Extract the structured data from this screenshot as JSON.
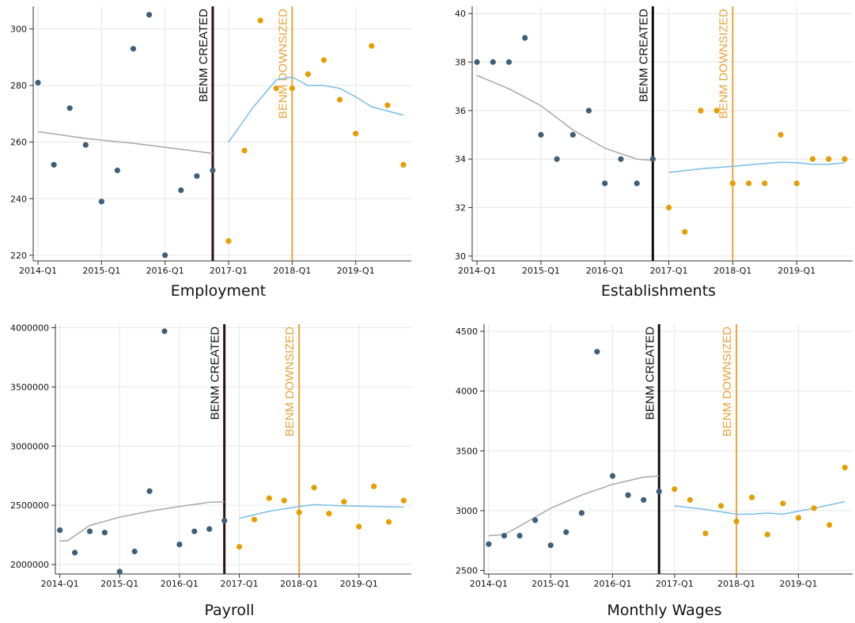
{
  "chart_data": [
    {
      "type": "scatter",
      "title": "Employment",
      "xlabel": "Employment",
      "x_ticks": [
        "2014-Q1",
        "2015-Q1",
        "2016-Q1",
        "2017-Q1",
        "2018-Q1",
        "2019-Q1"
      ],
      "ylim": [
        218,
        308
      ],
      "y_ticks": [
        "220",
        "240",
        "260",
        "280",
        "300"
      ],
      "grid": true,
      "annotations": [
        {
          "label": "BENM CREATED",
          "quarter": 11.0,
          "color": "#2b1014"
        },
        {
          "label": "BENM DOWNSIZED",
          "quarter": 16.0,
          "color": "#e8a43a"
        }
      ],
      "series": [
        {
          "color": "#3e5f7a",
          "points": [
            [
              0,
              281
            ],
            [
              1,
              252
            ],
            [
              2,
              272
            ],
            [
              3,
              259
            ],
            [
              4,
              239
            ],
            [
              5,
              250
            ],
            [
              6,
              293
            ],
            [
              7,
              305
            ],
            [
              8,
              220
            ],
            [
              9,
              243
            ],
            [
              10,
              248
            ],
            [
              11,
              250
            ]
          ]
        },
        {
          "color": "#e39f00",
          "points": [
            [
              12,
              225
            ],
            [
              13,
              257
            ],
            [
              14,
              303
            ],
            [
              15,
              279
            ],
            [
              16,
              279
            ],
            [
              17,
              284
            ],
            [
              18,
              289
            ],
            [
              19,
              275
            ],
            [
              20,
              263
            ],
            [
              21,
              294
            ],
            [
              22,
              273
            ],
            [
              23,
              252
            ]
          ]
        }
      ],
      "trend_lines": [
        {
          "color": "#a8a8a8",
          "points": [
            [
              0,
              263.7
            ],
            [
              3,
              261.3
            ],
            [
              6,
              259.6
            ],
            [
              8,
              258.2
            ],
            [
              11,
              256
            ]
          ]
        },
        {
          "color": "#79bde6",
          "points": [
            [
              12,
              260
            ],
            [
              13.5,
              272
            ],
            [
              15,
              282
            ],
            [
              16,
              283
            ],
            [
              17,
              280
            ],
            [
              18,
              280
            ],
            [
              19,
              279
            ],
            [
              20,
              276
            ],
            [
              21,
              272.5
            ],
            [
              22,
              271
            ],
            [
              23,
              269.5
            ]
          ]
        }
      ]
    },
    {
      "type": "scatter",
      "title": "Establishments",
      "xlabel": "Establishments",
      "x_ticks": [
        "2014-Q1",
        "2015-Q1",
        "2016-Q1",
        "2017-Q1",
        "2018-Q1",
        "2019-Q1"
      ],
      "ylim": [
        29.8,
        40.3
      ],
      "y_ticks": [
        "30",
        "32",
        "34",
        "36",
        "38",
        "40"
      ],
      "grid": true,
      "annotations": [
        {
          "label": "BENM CREATED",
          "quarter": 11.0,
          "color": "#111111"
        },
        {
          "label": "BENM DOWNSIZED",
          "quarter": 16.0,
          "color": "#e8a43a"
        }
      ],
      "series": [
        {
          "color": "#3e5f7a",
          "points": [
            [
              0,
              38
            ],
            [
              1,
              38
            ],
            [
              2,
              38
            ],
            [
              3,
              39
            ],
            [
              4,
              35
            ],
            [
              5,
              34
            ],
            [
              6,
              35
            ],
            [
              7,
              36
            ],
            [
              8,
              33
            ],
            [
              9,
              34
            ],
            [
              10,
              33
            ],
            [
              11,
              34
            ]
          ]
        },
        {
          "color": "#e39f00",
          "points": [
            [
              12,
              32
            ],
            [
              13,
              31
            ],
            [
              14,
              36
            ],
            [
              15,
              36
            ],
            [
              16,
              33
            ],
            [
              17,
              33
            ],
            [
              18,
              33
            ],
            [
              19,
              35
            ],
            [
              20,
              33
            ],
            [
              21,
              34
            ],
            [
              22,
              34
            ],
            [
              23,
              34
            ]
          ]
        }
      ],
      "trend_lines": [
        {
          "color": "#a8a8a8",
          "points": [
            [
              0,
              37.45
            ],
            [
              2,
              36.9
            ],
            [
              4,
              36.2
            ],
            [
              6,
              35.2
            ],
            [
              8,
              34.45
            ],
            [
              10,
              34.0
            ],
            [
              11,
              33.95
            ]
          ]
        },
        {
          "color": "#79bde6",
          "points": [
            [
              12,
              33.45
            ],
            [
              14,
              33.6
            ],
            [
              16,
              33.7
            ],
            [
              18,
              33.82
            ],
            [
              19,
              33.87
            ],
            [
              20,
              33.85
            ],
            [
              21,
              33.78
            ],
            [
              22,
              33.78
            ],
            [
              23,
              33.85
            ]
          ]
        }
      ]
    },
    {
      "type": "scatter",
      "title": "Payroll",
      "xlabel": "Payroll",
      "x_ticks": [
        "2014-Q1",
        "2015-Q1",
        "2016-Q1",
        "2017-Q1",
        "2018-Q1",
        "2019-Q1"
      ],
      "ylim": [
        1920000,
        4030000
      ],
      "y_ticks": [
        "2000000",
        "2500000",
        "3000000",
        "3500000",
        "4000000"
      ],
      "grid": true,
      "annotations": [
        {
          "label": "BENM CREATED",
          "quarter": 11.0,
          "color": "#2b1014"
        },
        {
          "label": "BENM DOWNSIZED",
          "quarter": 16.0,
          "color": "#e8a43a"
        }
      ],
      "series": [
        {
          "color": "#3e5f7a",
          "points": [
            [
              0,
              2290000
            ],
            [
              1,
              2100000
            ],
            [
              2,
              2280000
            ],
            [
              3,
              2270000
            ],
            [
              4,
              1940000
            ],
            [
              5,
              2110000
            ],
            [
              6,
              2620000
            ],
            [
              7,
              3970000
            ],
            [
              8,
              2170000
            ],
            [
              9,
              2280000
            ],
            [
              10,
              2300000
            ],
            [
              11,
              2370000
            ]
          ]
        },
        {
          "color": "#e39f00",
          "points": [
            [
              12,
              2150000
            ],
            [
              13,
              2380000
            ],
            [
              14,
              2560000
            ],
            [
              15,
              2540000
            ],
            [
              16,
              2440000
            ],
            [
              17,
              2650000
            ],
            [
              18,
              2430000
            ],
            [
              19,
              2530000
            ],
            [
              20,
              2320000
            ],
            [
              21,
              2660000
            ],
            [
              22,
              2360000
            ],
            [
              23,
              2540000
            ]
          ]
        }
      ],
      "trend_lines": [
        {
          "color": "#a8a8a8",
          "points": [
            [
              0,
              2200000
            ],
            [
              0.5,
              2200000
            ],
            [
              2,
              2330000
            ],
            [
              4,
              2400000
            ],
            [
              6,
              2450000
            ],
            [
              8,
              2490000
            ],
            [
              10,
              2525000
            ],
            [
              11,
              2530000
            ]
          ]
        },
        {
          "color": "#79bde6",
          "points": [
            [
              12,
              2390000
            ],
            [
              14,
              2450000
            ],
            [
              16,
              2490000
            ],
            [
              17,
              2505000
            ],
            [
              19,
              2495000
            ],
            [
              21,
              2490000
            ],
            [
              23,
              2485000
            ]
          ]
        }
      ]
    },
    {
      "type": "scatter",
      "title": "Monthly Wages",
      "xlabel": "Monthly Wages",
      "x_ticks": [
        "2014-Q1",
        "2015-Q1",
        "2016-Q1",
        "2017-Q1",
        "2018-Q1",
        "2019-Q1"
      ],
      "ylim": [
        2470,
        4560
      ],
      "y_ticks": [
        "2500",
        "3000",
        "3500",
        "4000",
        "4500"
      ],
      "grid": true,
      "annotations": [
        {
          "label": "BENM CREATED",
          "quarter": 11.0,
          "color": "#111111"
        },
        {
          "label": "BENM DOWNSIZED",
          "quarter": 16.0,
          "color": "#e8a43a"
        }
      ],
      "series": [
        {
          "color": "#3e5f7a",
          "points": [
            [
              0,
              2720
            ],
            [
              1,
              2790
            ],
            [
              2,
              2790
            ],
            [
              3,
              2920
            ],
            [
              4,
              2710
            ],
            [
              5,
              2820
            ],
            [
              6,
              2980
            ],
            [
              7,
              4330
            ],
            [
              8,
              3290
            ],
            [
              9,
              3130
            ],
            [
              10,
              3090
            ],
            [
              11,
              3160
            ]
          ]
        },
        {
          "color": "#e39f00",
          "points": [
            [
              12,
              3180
            ],
            [
              13,
              3090
            ],
            [
              14,
              2810
            ],
            [
              15,
              3040
            ],
            [
              16,
              2910
            ],
            [
              17,
              3110
            ],
            [
              18,
              2800
            ],
            [
              19,
              3060
            ],
            [
              20,
              2940
            ],
            [
              21,
              3020
            ],
            [
              22,
              2880
            ],
            [
              23,
              3360
            ]
          ]
        }
      ],
      "trend_lines": [
        {
          "color": "#a8a8a8",
          "points": [
            [
              0,
              2790
            ],
            [
              1,
              2800
            ],
            [
              2,
              2870
            ],
            [
              4,
              3020
            ],
            [
              6,
              3130
            ],
            [
              8,
              3220
            ],
            [
              10,
              3280
            ],
            [
              11,
              3290
            ]
          ]
        },
        {
          "color": "#79bde6",
          "points": [
            [
              12,
              3040
            ],
            [
              14,
              3010
            ],
            [
              16,
              2970
            ],
            [
              17,
              2970
            ],
            [
              18,
              2980
            ],
            [
              19,
              2970
            ],
            [
              21,
              3020
            ],
            [
              23,
              3075
            ]
          ]
        }
      ]
    }
  ]
}
